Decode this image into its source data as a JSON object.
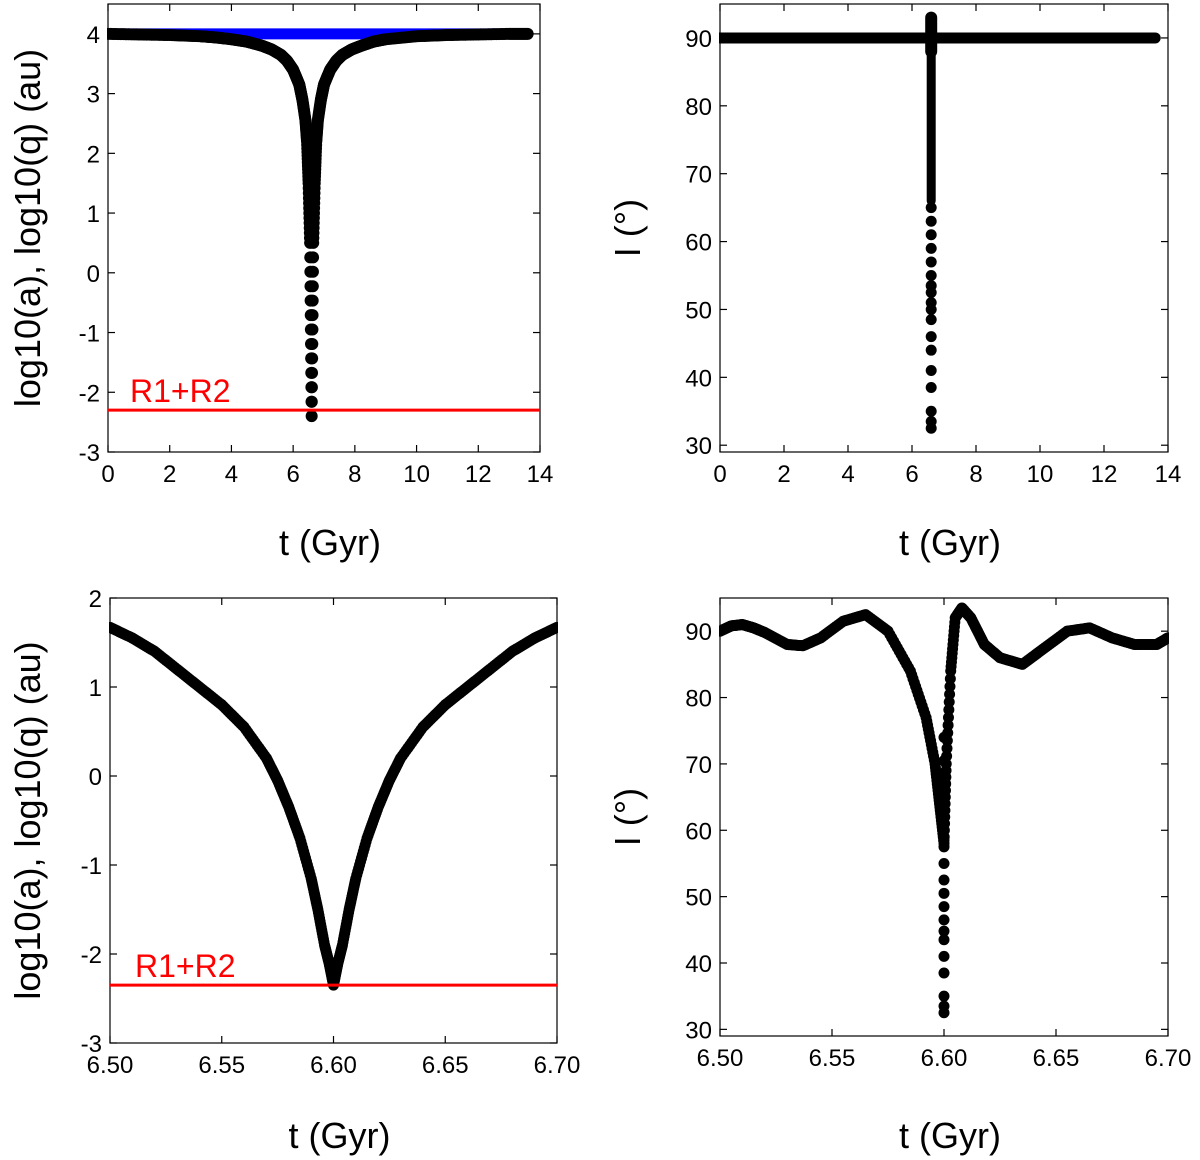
{
  "chart_data": [
    {
      "id": "panel-a",
      "type": "scatter",
      "xlabel": "t (Gyr)",
      "ylabel": "log10(a), log10(q) (au)",
      "xlim": [
        0,
        14
      ],
      "ylim": [
        -3,
        4.5
      ],
      "xticks": [
        0,
        2,
        4,
        6,
        8,
        10,
        12,
        14
      ],
      "xtick_labels": [
        "0",
        "2",
        "4",
        "6",
        "8",
        "10",
        "12",
        "14"
      ],
      "yticks": [
        -3,
        -2,
        -1,
        0,
        1,
        2,
        3,
        4
      ],
      "ytick_labels": [
        "-3",
        "-2",
        "-1",
        "0",
        "1",
        "2",
        "3",
        "4"
      ],
      "series": [
        {
          "name": "log10(a)",
          "color": "#0000ff",
          "x": [
            0,
            13.6
          ],
          "y": [
            4,
            4
          ]
        },
        {
          "name": "log10(q)",
          "color": "#000000",
          "x": [
            0,
            1,
            2,
            3,
            3.5,
            4,
            4.5,
            5,
            5.3,
            5.6,
            5.8,
            6.0,
            6.2,
            6.3,
            6.4,
            6.45,
            6.5,
            6.55,
            6.6,
            6.65,
            6.7,
            6.75,
            6.8,
            6.9,
            7.0,
            7.2,
            7.4,
            7.6,
            7.9,
            8.2,
            8.6,
            9,
            10,
            11,
            12,
            13,
            13.6
          ],
          "y": [
            4,
            3.99,
            3.98,
            3.96,
            3.94,
            3.91,
            3.87,
            3.8,
            3.74,
            3.65,
            3.55,
            3.4,
            3.15,
            2.9,
            2.55,
            2.2,
            1.5,
            0.5,
            -2.4,
            0.5,
            1.5,
            2.2,
            2.55,
            2.9,
            3.15,
            3.4,
            3.55,
            3.65,
            3.74,
            3.8,
            3.87,
            3.91,
            3.96,
            3.98,
            3.99,
            4,
            4
          ]
        }
      ],
      "reference_line": {
        "label": "R1+R2",
        "y": -2.3,
        "color": "#ff0000"
      }
    },
    {
      "id": "panel-b",
      "type": "scatter",
      "xlabel": "t (Gyr)",
      "ylabel": "I (°)",
      "xlim": [
        0,
        14
      ],
      "ylim": [
        29,
        95
      ],
      "xticks": [
        0,
        2,
        4,
        6,
        8,
        10,
        12,
        14
      ],
      "xtick_labels": [
        "0",
        "2",
        "4",
        "6",
        "8",
        "10",
        "12",
        "14"
      ],
      "yticks": [
        30,
        40,
        50,
        60,
        70,
        80,
        90
      ],
      "ytick_labels": [
        "30",
        "40",
        "50",
        "60",
        "70",
        "80",
        "90"
      ],
      "series": [
        {
          "name": "I",
          "color": "#000000",
          "x": [
            0,
            13.6,
            6.6,
            6.6
          ],
          "y": [
            90,
            90,
            93,
            88
          ]
        }
      ],
      "outliers": {
        "x": [
          6.6,
          6.6,
          6.6,
          6.6,
          6.6,
          6.6,
          6.6,
          6.6,
          6.6,
          6.6,
          6.6,
          6.6,
          6.6,
          6.6,
          6.6,
          6.6,
          6.6,
          6.6
        ],
        "y": [
          32.5,
          33.5,
          35,
          38.5,
          41,
          44,
          46,
          48.5,
          50,
          51,
          52.5,
          53.5,
          55,
          57,
          59,
          61,
          63,
          65
        ]
      }
    },
    {
      "id": "panel-c",
      "type": "scatter",
      "xlabel": "t (Gyr)",
      "ylabel": "log10(a), log10(q) (au)",
      "xlim": [
        6.5,
        6.7
      ],
      "ylim": [
        -3,
        2
      ],
      "xticks": [
        6.5,
        6.55,
        6.6,
        6.65,
        6.7
      ],
      "xtick_labels": [
        "6.50",
        "6.55",
        "6.60",
        "6.65",
        "6.70"
      ],
      "yticks": [
        -3,
        -2,
        -1,
        0,
        1,
        2
      ],
      "ytick_labels": [
        "-3",
        "-2",
        "-1",
        "0",
        "1",
        "2"
      ],
      "series": [
        {
          "name": "log10(q)",
          "color": "#000000",
          "x": [
            6.5,
            6.51,
            6.52,
            6.53,
            6.54,
            6.55,
            6.56,
            6.57,
            6.575,
            6.58,
            6.585,
            6.59,
            6.593,
            6.596,
            6.598,
            6.6,
            6.602,
            6.604,
            6.607,
            6.61,
            6.615,
            6.62,
            6.625,
            6.63,
            6.64,
            6.65,
            6.66,
            6.67,
            6.68,
            6.69,
            6.7
          ],
          "y": [
            1.67,
            1.55,
            1.4,
            1.2,
            1.0,
            0.8,
            0.55,
            0.2,
            -0.05,
            -0.35,
            -0.7,
            -1.15,
            -1.5,
            -1.9,
            -2.1,
            -2.35,
            -2.1,
            -1.9,
            -1.5,
            -1.15,
            -0.7,
            -0.35,
            -0.05,
            0.2,
            0.55,
            0.8,
            1.0,
            1.2,
            1.4,
            1.55,
            1.67
          ]
        }
      ],
      "reference_line": {
        "label": "R1+R2",
        "y": -2.35,
        "color": "#ff0000"
      }
    },
    {
      "id": "panel-d",
      "type": "scatter",
      "xlabel": "t (Gyr)",
      "ylabel": "I (°)",
      "xlim": [
        6.5,
        6.7
      ],
      "ylim": [
        29,
        95
      ],
      "xticks": [
        6.5,
        6.55,
        6.6,
        6.65,
        6.7
      ],
      "xtick_labels": [
        "6.50",
        "6.55",
        "6.60",
        "6.65",
        "6.70"
      ],
      "yticks": [
        30,
        40,
        50,
        60,
        70,
        80,
        90
      ],
      "ytick_labels": [
        "30",
        "40",
        "50",
        "60",
        "70",
        "80",
        "90"
      ],
      "series": [
        {
          "name": "I",
          "color": "#000000",
          "x": [
            6.5,
            6.505,
            6.51,
            6.515,
            6.52,
            6.53,
            6.537,
            6.545,
            6.555,
            6.565,
            6.575,
            6.585,
            6.592,
            6.596,
            6.598,
            6.6,
            6.601,
            6.603,
            6.605,
            6.608,
            6.612,
            6.618,
            6.625,
            6.635,
            6.645,
            6.655,
            6.665,
            6.675,
            6.685,
            6.695,
            6.7
          ],
          "y": [
            90,
            90.8,
            91,
            90.5,
            89.8,
            88,
            87.8,
            89,
            91.5,
            92.5,
            90,
            84,
            77,
            70,
            64,
            58,
            70,
            84,
            92,
            93.5,
            92,
            88,
            86,
            85,
            87.5,
            90,
            90.5,
            89,
            88,
            88,
            89
          ]
        }
      ],
      "outliers": {
        "x": [
          6.6,
          6.6,
          6.6,
          6.6,
          6.6,
          6.6,
          6.6,
          6.6,
          6.6,
          6.6,
          6.6,
          6.6,
          6.6,
          6.6,
          6.6,
          6.6,
          6.6,
          6.6,
          6.6,
          6.6
        ],
        "y": [
          32.5,
          33.5,
          35,
          38.5,
          41,
          43.5,
          44.8,
          46.5,
          48.5,
          50.5,
          52.5,
          55,
          57.5,
          58.5,
          60,
          62,
          64.5,
          68,
          70.5,
          74
        ]
      }
    }
  ]
}
